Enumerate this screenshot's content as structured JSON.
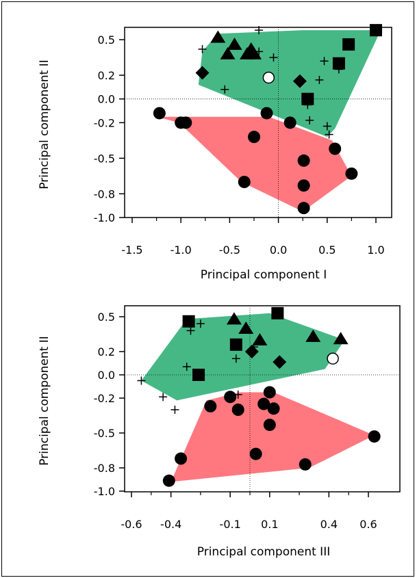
{
  "chart_data": [
    {
      "type": "scatter",
      "xlabel": "Principal component I",
      "ylabel": "Principal component II",
      "xlim": [
        -1.5,
        1.0
      ],
      "ylim": [
        -1.0,
        0.5
      ],
      "x_ticks": [
        "-1.5",
        "-1.0",
        "-0.5",
        "0.0",
        "0.5",
        "1.0"
      ],
      "y_ticks": [
        "0.5",
        "0.2",
        "0.0",
        "-0.2",
        "-0.5",
        "-0.8",
        "-1.0"
      ],
      "colors": {
        "green_hull": "#46b886",
        "red_hull": "#ff7880",
        "marker": "#000000"
      },
      "hulls": [
        {
          "color": "#46b886",
          "points": [
            [
              -0.78,
              0.4
            ],
            [
              -0.62,
              0.55
            ],
            [
              0.25,
              0.58
            ],
            [
              1.05,
              0.58
            ],
            [
              0.58,
              -0.25
            ],
            [
              0.5,
              -0.32
            ],
            [
              -0.82,
              0.12
            ]
          ]
        },
        {
          "color": "#ff7880",
          "points": [
            [
              -1.25,
              -0.15
            ],
            [
              -0.1,
              -0.15
            ],
            [
              0.55,
              -0.35
            ],
            [
              0.75,
              -0.65
            ],
            [
              0.25,
              -0.95
            ],
            [
              -0.38,
              -0.7
            ],
            [
              -1.02,
              -0.2
            ]
          ]
        }
      ],
      "series": [
        {
          "marker": "triangle",
          "points": [
            [
              -0.62,
              0.52
            ],
            [
              -0.52,
              0.38
            ],
            [
              -0.45,
              0.46
            ],
            [
              -0.32,
              0.38
            ],
            [
              -0.28,
              0.42
            ],
            [
              -0.25,
              0.38
            ]
          ]
        },
        {
          "marker": "square",
          "points": [
            [
              0.3,
              0.0
            ],
            [
              0.62,
              0.3
            ],
            [
              0.72,
              0.46
            ],
            [
              1.0,
              0.58
            ]
          ]
        },
        {
          "marker": "diamond",
          "points": [
            [
              -0.78,
              0.22
            ],
            [
              0.22,
              0.15
            ]
          ]
        },
        {
          "marker": "circle-open",
          "points": [
            [
              -0.1,
              0.18
            ]
          ]
        },
        {
          "marker": "circle",
          "points": [
            [
              -1.22,
              -0.12
            ],
            [
              -1.0,
              -0.2
            ],
            [
              -0.95,
              -0.2
            ],
            [
              -0.25,
              -0.32
            ],
            [
              -0.12,
              -0.12
            ],
            [
              0.12,
              -0.2
            ],
            [
              0.26,
              -0.52
            ],
            [
              0.26,
              -0.73
            ],
            [
              0.26,
              -0.92
            ],
            [
              0.58,
              -0.42
            ],
            [
              0.75,
              -0.63
            ],
            [
              -0.35,
              -0.7
            ]
          ]
        },
        {
          "marker": "plus",
          "points": [
            [
              -0.78,
              0.42
            ],
            [
              -0.2,
              0.58
            ],
            [
              -0.2,
              0.4
            ],
            [
              -0.05,
              0.35
            ],
            [
              0.3,
              -0.05
            ],
            [
              0.32,
              -0.18
            ],
            [
              0.42,
              0.16
            ],
            [
              0.47,
              0.32
            ],
            [
              0.5,
              -0.23
            ],
            [
              0.52,
              -0.3
            ],
            [
              0.62,
              0.25
            ],
            [
              -0.55,
              0.08
            ]
          ]
        }
      ]
    },
    {
      "type": "scatter",
      "xlabel": "Principal component III",
      "ylabel": "Principal component II",
      "xlim": [
        -0.6,
        0.6
      ],
      "ylim": [
        -1.0,
        0.5
      ],
      "x_ticks": [
        "-0.6",
        "-0.4",
        "-0.1",
        "0.1",
        "0.4",
        "0.6"
      ],
      "y_ticks": [
        "0.5",
        "0.2",
        "0.0",
        "-0.2",
        "-0.5",
        "-0.8",
        "-1.0"
      ],
      "colors": {
        "green_hull": "#46b886",
        "red_hull": "#ff7880",
        "marker": "#000000"
      },
      "hulls": [
        {
          "color": "#46b886",
          "points": [
            [
              -0.55,
              -0.05
            ],
            [
              -0.32,
              0.48
            ],
            [
              0.1,
              0.53
            ],
            [
              0.48,
              0.3
            ],
            [
              0.38,
              0.05
            ],
            [
              -0.37,
              -0.22
            ]
          ]
        },
        {
          "color": "#ff7880",
          "points": [
            [
              -0.22,
              -0.22
            ],
            [
              -0.05,
              -0.15
            ],
            [
              0.12,
              -0.15
            ],
            [
              0.63,
              -0.52
            ],
            [
              0.3,
              -0.8
            ],
            [
              -0.4,
              -0.92
            ]
          ]
        }
      ],
      "series": [
        {
          "marker": "triangle",
          "points": [
            [
              -0.08,
              0.48
            ],
            [
              -0.02,
              0.4
            ],
            [
              0.05,
              0.3
            ],
            [
              0.32,
              0.33
            ],
            [
              0.46,
              0.31
            ]
          ]
        },
        {
          "marker": "square",
          "points": [
            [
              -0.31,
              0.46
            ],
            [
              -0.26,
              0.0
            ],
            [
              -0.07,
              0.26
            ],
            [
              0.14,
              0.53
            ]
          ]
        },
        {
          "marker": "diamond",
          "points": [
            [
              0.01,
              0.2
            ],
            [
              0.15,
              0.11
            ]
          ]
        },
        {
          "marker": "circle-open",
          "points": [
            [
              0.42,
              0.14
            ]
          ]
        },
        {
          "marker": "circle",
          "points": [
            [
              -0.35,
              -0.72
            ],
            [
              -0.41,
              -0.91
            ],
            [
              -0.2,
              -0.27
            ],
            [
              -0.1,
              -0.19
            ],
            [
              -0.06,
              -0.3
            ],
            [
              0.07,
              -0.25
            ],
            [
              0.03,
              -0.68
            ],
            [
              0.1,
              -0.15
            ],
            [
              0.1,
              -0.43
            ],
            [
              0.12,
              -0.29
            ],
            [
              0.28,
              -0.77
            ],
            [
              0.63,
              -0.53
            ]
          ]
        },
        {
          "marker": "plus",
          "points": [
            [
              -0.55,
              -0.05
            ],
            [
              -0.44,
              -0.19
            ],
            [
              -0.38,
              -0.3
            ],
            [
              -0.32,
              0.07
            ],
            [
              -0.3,
              0.38
            ],
            [
              -0.25,
              0.44
            ],
            [
              -0.07,
              0.14
            ],
            [
              -0.06,
              -0.17
            ],
            [
              0.02,
              0.24
            ]
          ]
        }
      ]
    }
  ]
}
